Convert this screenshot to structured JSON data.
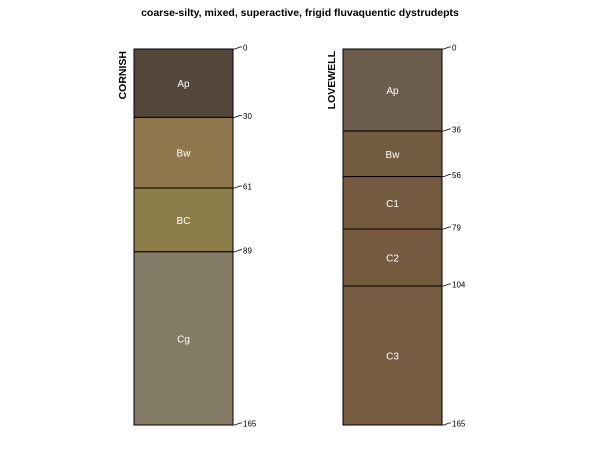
{
  "title": "coarse-silty, mixed, superactive, frigid fluvaquentic dystrudepts",
  "max_depth": 165,
  "profiles": [
    {
      "name": "CORNISH",
      "horizons": [
        {
          "name": "Ap",
          "top": 0,
          "bottom": 30,
          "color": "#54463a"
        },
        {
          "name": "Bw",
          "top": 30,
          "bottom": 61,
          "color": "#8f774d"
        },
        {
          "name": "BC",
          "top": 61,
          "bottom": 89,
          "color": "#8b7e4b"
        },
        {
          "name": "Cg",
          "top": 89,
          "bottom": 165,
          "color": "#847b66"
        }
      ]
    },
    {
      "name": "LOVEWELL",
      "horizons": [
        {
          "name": "Ap",
          "top": 0,
          "bottom": 36,
          "color": "#6d5d4c"
        },
        {
          "name": "Bw",
          "top": 36,
          "bottom": 56,
          "color": "#745c41"
        },
        {
          "name": "C1",
          "top": 56,
          "bottom": 79,
          "color": "#745b40"
        },
        {
          "name": "C2",
          "top": 79,
          "bottom": 104,
          "color": "#755c41"
        },
        {
          "name": "C3",
          "top": 104,
          "bottom": 165,
          "color": "#765c40"
        }
      ]
    }
  ]
}
